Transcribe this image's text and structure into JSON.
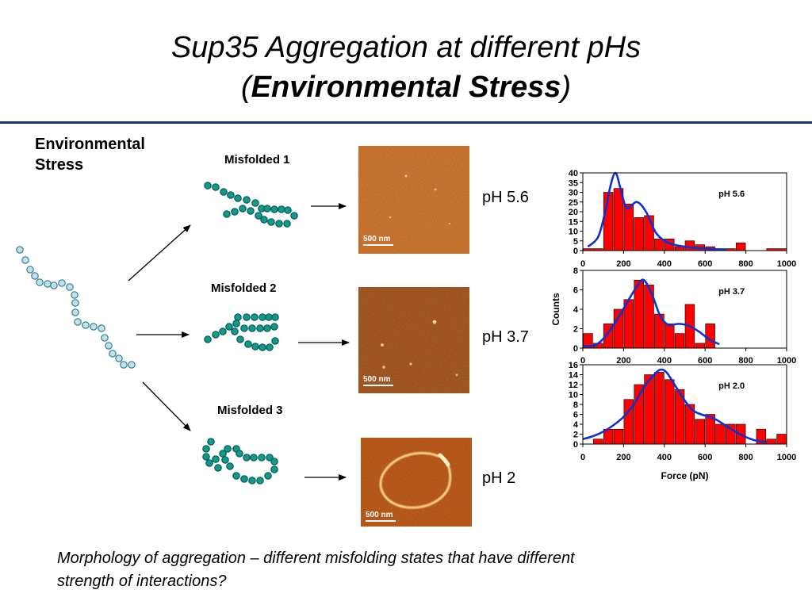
{
  "slide": {
    "title_line1": "Sup35 Aggregation at different pHs",
    "title_line2_open": "(",
    "title_line2_bold": "Environmental Stress",
    "title_line2_close": ")",
    "stress_label_1": "Environmental",
    "stress_label_2": "Stress",
    "footer_line1": "Morphology of aggregation – different misfolding states that have different",
    "footer_line2": "strength of interactions?"
  },
  "states": [
    {
      "label": "Misfolded 1",
      "ph": "pH 5.6",
      "scale": "500 nm"
    },
    {
      "label": "Misfolded 2",
      "ph": "pH 3.7",
      "scale": "500 nm"
    },
    {
      "label": "Misfolded 3",
      "ph": "pH 2",
      "scale": "500 nm"
    }
  ],
  "colors": {
    "rule": "#1a2e7a",
    "bead_native": "#bfe3ea",
    "bead_misfolded": "#0f9a8c",
    "bar": "#ff0000",
    "fit": "#1030d0"
  },
  "chart_data": [
    {
      "type": "bar",
      "annotation": "pH 5.6",
      "x": [
        25,
        75,
        125,
        175,
        225,
        275,
        325,
        375,
        425,
        475,
        525,
        575,
        625,
        675,
        725,
        775,
        825,
        875,
        925,
        975
      ],
      "values": [
        1,
        1,
        30,
        32,
        24,
        17,
        18,
        6,
        6,
        2,
        5,
        3,
        2,
        1,
        1,
        4,
        0,
        0,
        1,
        1
      ],
      "fit": [
        [
          25,
          2
        ],
        [
          75,
          7
        ],
        [
          110,
          20
        ],
        [
          135,
          33
        ],
        [
          160,
          40
        ],
        [
          185,
          32
        ],
        [
          215,
          22
        ],
        [
          265,
          25
        ],
        [
          310,
          20
        ],
        [
          360,
          9
        ],
        [
          420,
          4
        ],
        [
          500,
          2
        ],
        [
          600,
          1
        ],
        [
          700,
          0.5
        ]
      ],
      "xlim": [
        0,
        1000
      ],
      "ylim": [
        0,
        40
      ],
      "xticks": [
        "0",
        "200",
        "400",
        "600",
        "800",
        "1000"
      ],
      "yticks": [
        "0",
        "5",
        "10",
        "15",
        "20",
        "25",
        "30",
        "35",
        "40"
      ]
    },
    {
      "type": "bar",
      "annotation": "pH 3.7",
      "ylabel": "Counts",
      "x": [
        25,
        75,
        125,
        175,
        225,
        275,
        325,
        375,
        425,
        475,
        525,
        575,
        625
      ],
      "values": [
        1.5,
        0.5,
        2.5,
        4,
        5,
        7,
        6.5,
        3.5,
        2.5,
        1.5,
        4.5,
        0.5,
        2.5
      ],
      "fit": [
        [
          0,
          0.2
        ],
        [
          60,
          0.3
        ],
        [
          110,
          1.2
        ],
        [
          170,
          3
        ],
        [
          220,
          4.8
        ],
        [
          270,
          6.5
        ],
        [
          300,
          7
        ],
        [
          340,
          5.5
        ],
        [
          380,
          3.3
        ],
        [
          420,
          2.4
        ],
        [
          470,
          2.5
        ],
        [
          520,
          2.3
        ],
        [
          570,
          1.7
        ],
        [
          620,
          0.9
        ],
        [
          670,
          0.4
        ]
      ],
      "xlim": [
        0,
        1000
      ],
      "ylim": [
        0,
        8
      ],
      "xticks": [
        "0",
        "200",
        "400",
        "600",
        "800",
        "1000"
      ],
      "yticks": [
        "0",
        "2",
        "4",
        "6",
        "8"
      ]
    },
    {
      "type": "bar",
      "annotation": "pH 2.0",
      "xlabel": "Force (pN)",
      "x": [
        25,
        75,
        125,
        175,
        225,
        275,
        325,
        375,
        425,
        475,
        525,
        575,
        625,
        675,
        725,
        775,
        825,
        875,
        925,
        975
      ],
      "values": [
        0,
        1,
        3,
        3,
        9,
        12,
        14,
        14.5,
        13,
        11,
        8,
        5,
        6,
        4,
        4,
        4,
        0,
        3,
        1,
        2
      ],
      "fit": [
        [
          0,
          1
        ],
        [
          50,
          1.6
        ],
        [
          100,
          2.5
        ],
        [
          150,
          3.8
        ],
        [
          200,
          5.5
        ],
        [
          250,
          8
        ],
        [
          300,
          11.5
        ],
        [
          350,
          14
        ],
        [
          380,
          15
        ],
        [
          410,
          14.5
        ],
        [
          450,
          12
        ],
        [
          500,
          8.8
        ],
        [
          540,
          6.8
        ],
        [
          580,
          6
        ],
        [
          620,
          5.5
        ],
        [
          660,
          4.8
        ],
        [
          720,
          3.2
        ],
        [
          780,
          1.8
        ],
        [
          840,
          0.8
        ],
        [
          900,
          0.4
        ]
      ],
      "xlim": [
        0,
        1000
      ],
      "ylim": [
        0,
        16
      ],
      "xticks": [
        "0",
        "200",
        "400",
        "600",
        "800",
        "1000"
      ],
      "yticks": [
        "0",
        "2",
        "4",
        "6",
        "8",
        "10",
        "12",
        "14",
        "16"
      ]
    }
  ]
}
